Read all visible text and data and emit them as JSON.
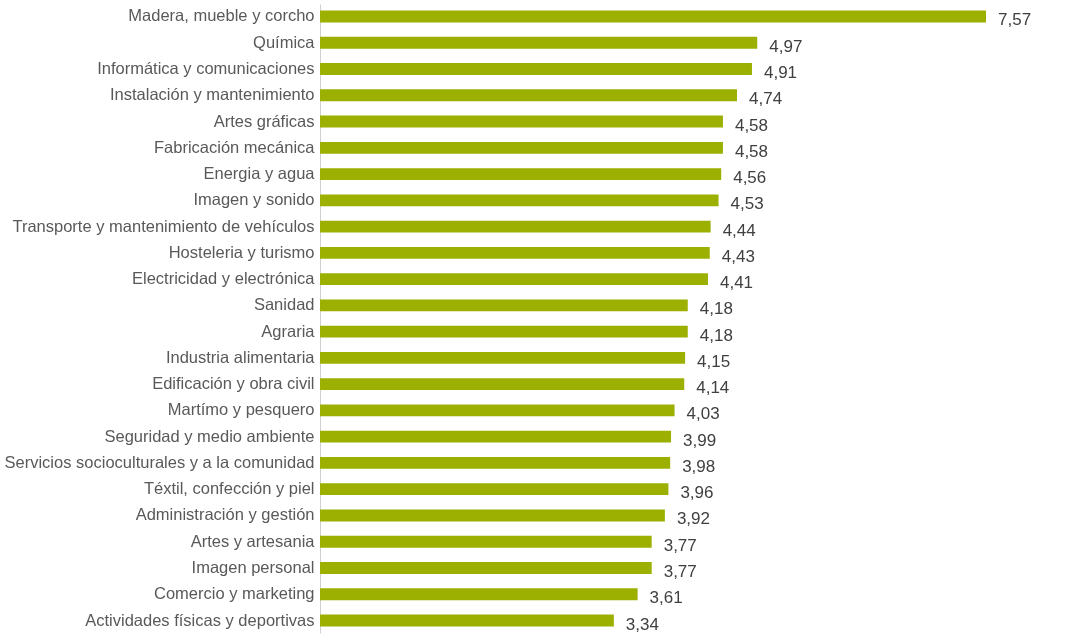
{
  "chart_data": {
    "type": "bar",
    "orientation": "horizontal",
    "color": "#9bb000",
    "categories": [
      "Madera, mueble y corcho",
      "Química",
      "Informática y comunicaciones",
      "Instalación y mantenimiento",
      "Artes gráficas",
      "Fabricación mecánica",
      "Energia y agua",
      "Imagen y sonido",
      "Transporte y mantenimiento de vehículos",
      "Hosteleria y turismo",
      "Electricidad y electrónica",
      "Sanidad",
      "Agraria",
      "Industria alimentaria",
      "Edificación y obra civil",
      "Martímo y pesquero",
      "Seguridad y medio ambiente",
      "Servicios socioculturales y a la comunidad",
      "Téxtil, confección y  piel",
      "Administración y gestión",
      "Artes y artesania",
      "Imagen personal",
      "Comercio y marketing",
      "Actividades físicas y deportivas"
    ],
    "values": [
      7.57,
      4.97,
      4.91,
      4.74,
      4.58,
      4.58,
      4.56,
      4.53,
      4.44,
      4.43,
      4.41,
      4.18,
      4.18,
      4.15,
      4.14,
      4.03,
      3.99,
      3.98,
      3.96,
      3.92,
      3.77,
      3.77,
      3.61,
      3.34
    ],
    "value_labels": [
      "7,57",
      "4,97",
      "4,91",
      "4,74",
      "4,58",
      "4,58",
      "4,56",
      "4,53",
      "4,44",
      "4,43",
      "4,41",
      "4,18",
      "4,18",
      "4,15",
      "4,14",
      "4,03",
      "3,99",
      "3,98",
      "3,96",
      "3,92",
      "3,77",
      "3,77",
      "3,61",
      "3,34"
    ],
    "tick_labels": "y"
  }
}
